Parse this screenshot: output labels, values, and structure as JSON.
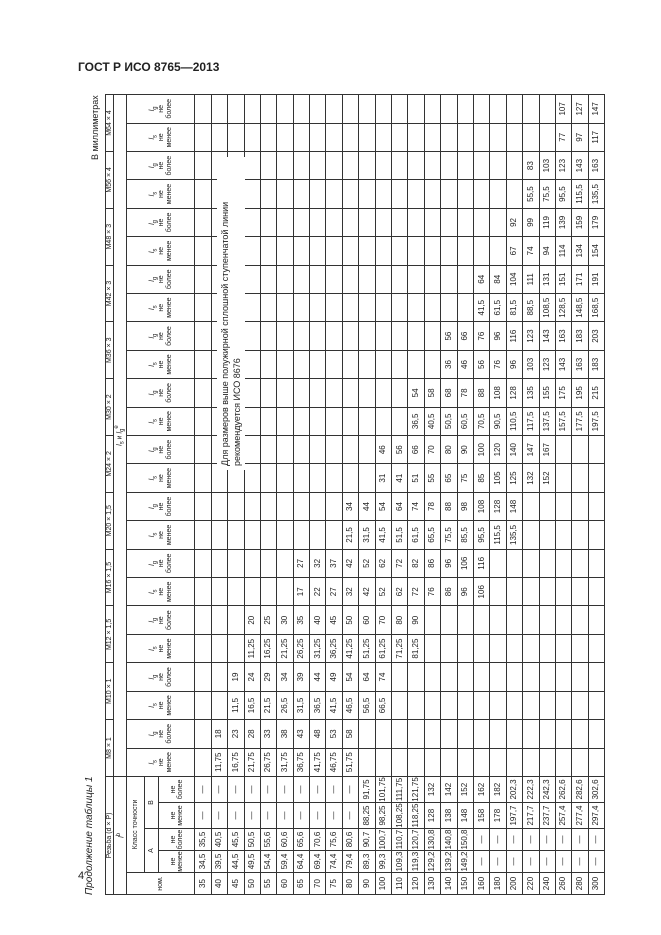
{
  "header": {
    "title": "ГОСТ Р ИСО 8765—2013",
    "page": "4",
    "caption": "Продолжение таблицы 1",
    "units": "В миллиметрах"
  },
  "table": {
    "thread_label": "Резьба (d × P)",
    "threads": [
      "M8 × 1",
      "M10 × 1",
      "M12 × 1,5",
      "M16 × 1,5",
      "M20 × 1,5",
      "M24 × 2",
      "M30 × 2",
      "M36 × 3",
      "M42 × 3",
      "M48 × 3",
      "M56 × 4",
      "M64 × 4"
    ],
    "l": "l",
    "b": "b",
    "s": "s",
    "g": "g",
    "and": "и",
    "e": "e",
    "accuracy_label": "Класс точности",
    "class_a": "A",
    "class_b": "B",
    "nom": "ном.",
    "min": "не менее",
    "max": "не более",
    "note": "Для размеров выше полужирной сплошной ступенчатой линии рекомендуется ИСО 8676",
    "rows": [
      [
        "35",
        "34,5",
        "35,5",
        "—",
        "—",
        null,
        null,
        null,
        null,
        null,
        null,
        null,
        null,
        null,
        null,
        null,
        null,
        null,
        null,
        null,
        null,
        null,
        null,
        null,
        null,
        null,
        null,
        null,
        null
      ],
      [
        "40",
        "39,5",
        "40,5",
        "—",
        "—",
        "11,75",
        "18",
        null,
        null,
        null,
        null,
        null,
        null,
        null,
        null,
        null,
        null,
        null,
        null,
        null,
        null,
        null,
        null,
        null,
        null,
        null,
        null,
        null,
        null
      ],
      [
        "45",
        "44,5",
        "45,5",
        "—",
        "—",
        "16,75",
        "23",
        "11,5",
        "19",
        null,
        null,
        null,
        null,
        null,
        null,
        null,
        null,
        null,
        null,
        null,
        null,
        null,
        null,
        null,
        null,
        null,
        null,
        null,
        null
      ],
      [
        "50",
        "49,5",
        "50,5",
        "—",
        "—",
        "21,75",
        "28",
        "16,5",
        "24",
        "11,25",
        "20",
        null,
        null,
        null,
        null,
        null,
        null,
        null,
        null,
        null,
        null,
        null,
        null,
        null,
        null,
        null,
        null,
        null,
        null
      ],
      [
        "55",
        "54,4",
        "55,6",
        "—",
        "—",
        "26,75",
        "33",
        "21,5",
        "29",
        "16,25",
        "25",
        null,
        null,
        null,
        null,
        null,
        null,
        null,
        null,
        null,
        null,
        null,
        null,
        null,
        null,
        null,
        null,
        null,
        null
      ],
      [
        "60",
        "59,4",
        "60,6",
        "—",
        "—",
        "31,75",
        "38",
        "26,5",
        "34",
        "21,25",
        "30",
        null,
        null,
        null,
        null,
        null,
        null,
        null,
        null,
        null,
        null,
        null,
        null,
        null,
        null,
        null,
        null,
        null,
        null
      ],
      [
        "65",
        "64,4",
        "65,6",
        "—",
        "—",
        "36,75",
        "43",
        "31,5",
        "39",
        "26,25",
        "35",
        "17",
        "27",
        null,
        null,
        null,
        null,
        null,
        null,
        null,
        null,
        null,
        null,
        null,
        null,
        null,
        null,
        null,
        null
      ],
      [
        "70",
        "69,4",
        "70,6",
        "—",
        "—",
        "41,75",
        "48",
        "36,5",
        "44",
        "31,25",
        "40",
        "22",
        "32",
        null,
        null,
        null,
        null,
        null,
        null,
        null,
        null,
        null,
        null,
        null,
        null,
        null,
        null,
        null,
        null
      ],
      [
        "75",
        "74,4",
        "75,6",
        "—",
        "—",
        "46,75",
        "53",
        "41,5",
        "49",
        "36,25",
        "45",
        "27",
        "37",
        null,
        null,
        null,
        null,
        null,
        null,
        null,
        null,
        null,
        null,
        null,
        null,
        null,
        null,
        null,
        null
      ],
      [
        "80",
        "79,4",
        "80,6",
        "—",
        "—",
        "51,75",
        "58",
        "46,5",
        "54",
        "41,25",
        "50",
        "32",
        "42",
        "21,5",
        "34",
        null,
        null,
        null,
        null,
        null,
        null,
        null,
        null,
        null,
        null,
        null,
        null,
        null,
        null
      ],
      [
        "90",
        "89,3",
        "90,7",
        "88,25",
        "91,75",
        null,
        null,
        "56,5",
        "64",
        "51,25",
        "60",
        "42",
        "52",
        "31,5",
        "44",
        null,
        null,
        null,
        null,
        null,
        null,
        null,
        null,
        null,
        null,
        null,
        null,
        null,
        null
      ],
      [
        "100",
        "99,3",
        "100,7",
        "98,25",
        "101,75",
        null,
        null,
        "66,5",
        "74",
        "61,25",
        "70",
        "52",
        "62",
        "41,5",
        "54",
        "31",
        "46",
        null,
        null,
        null,
        null,
        null,
        null,
        null,
        null,
        null,
        null,
        null,
        null
      ],
      [
        "110",
        "109,3",
        "110,7",
        "108,25",
        "111,75",
        null,
        null,
        null,
        null,
        "71,25",
        "80",
        "62",
        "72",
        "51,5",
        "64",
        "41",
        "56",
        null,
        null,
        null,
        null,
        null,
        null,
        null,
        null,
        null,
        null,
        null,
        null
      ],
      [
        "120",
        "119,3",
        "120,7",
        "118,25",
        "121,75",
        null,
        null,
        null,
        null,
        "81,25",
        "90",
        "72",
        "82",
        "61,5",
        "74",
        "51",
        "66",
        "36,5",
        "54",
        null,
        null,
        null,
        null,
        null,
        null,
        null,
        null,
        null,
        null
      ],
      [
        "130",
        "129,2",
        "130,8",
        "128",
        "132",
        null,
        null,
        null,
        null,
        null,
        null,
        "76",
        "86",
        "65,5",
        "78",
        "55",
        "70",
        "40,5",
        "58",
        null,
        null,
        null,
        null,
        null,
        null,
        null,
        null,
        null,
        null
      ],
      [
        "140",
        "139,2",
        "140,8",
        "138",
        "142",
        null,
        null,
        null,
        null,
        null,
        null,
        "86",
        "96",
        "75,5",
        "88",
        "65",
        "80",
        "50,5",
        "68",
        "36",
        "56",
        null,
        null,
        null,
        null,
        null,
        null,
        null,
        null
      ],
      [
        "150",
        "149,2",
        "150,8",
        "148",
        "152",
        null,
        null,
        null,
        null,
        null,
        null,
        "96",
        "106",
        "85,5",
        "98",
        "75",
        "90",
        "60,5",
        "78",
        "46",
        "66",
        null,
        null,
        null,
        null,
        null,
        null,
        null,
        null
      ],
      [
        "160",
        "—",
        "—",
        "158",
        "162",
        null,
        null,
        null,
        null,
        null,
        null,
        "106",
        "116",
        "95,5",
        "108",
        "85",
        "100",
        "70,5",
        "88",
        "56",
        "76",
        "41,5",
        "64",
        null,
        null,
        null,
        null,
        null,
        null
      ],
      [
        "180",
        "—",
        "—",
        "178",
        "182",
        null,
        null,
        null,
        null,
        null,
        null,
        null,
        null,
        "115,5",
        "128",
        "105",
        "120",
        "90,5",
        "108",
        "76",
        "96",
        "61,5",
        "84",
        null,
        null,
        null,
        null,
        null,
        null
      ],
      [
        "200",
        "—",
        "—",
        "197,7",
        "202,3",
        null,
        null,
        null,
        null,
        null,
        null,
        null,
        null,
        "135,5",
        "148",
        "125",
        "140",
        "110,5",
        "128",
        "96",
        "116",
        "81,5",
        "104",
        "67",
        "92",
        null,
        null,
        null,
        null
      ],
      [
        "220",
        "—",
        "—",
        "217,7",
        "222,3",
        null,
        null,
        null,
        null,
        null,
        null,
        null,
        null,
        null,
        null,
        "132",
        "147",
        "117,5",
        "135",
        "103",
        "123",
        "88,5",
        "111",
        "74",
        "99",
        "55,5",
        "83",
        null,
        null
      ],
      [
        "240",
        "—",
        "—",
        "237,7",
        "242,3",
        null,
        null,
        null,
        null,
        null,
        null,
        null,
        null,
        null,
        null,
        "152",
        "167",
        "137,5",
        "155",
        "123",
        "143",
        "108,5",
        "131",
        "94",
        "119",
        "75,5",
        "103",
        null,
        null
      ],
      [
        "260",
        "—",
        "—",
        "257,4",
        "262,6",
        null,
        null,
        null,
        null,
        null,
        null,
        null,
        null,
        null,
        null,
        null,
        null,
        "157,5",
        "175",
        "143",
        "163",
        "128,5",
        "151",
        "114",
        "139",
        "95,5",
        "123",
        "77",
        "107"
      ],
      [
        "280",
        "—",
        "—",
        "277,4",
        "282,6",
        null,
        null,
        null,
        null,
        null,
        null,
        null,
        null,
        null,
        null,
        null,
        null,
        "177,5",
        "195",
        "163",
        "183",
        "148,5",
        "171",
        "134",
        "159",
        "115,5",
        "143",
        "97",
        "127"
      ],
      [
        "300",
        "—",
        "—",
        "297,4",
        "302,6",
        null,
        null,
        null,
        null,
        null,
        null,
        null,
        null,
        null,
        null,
        null,
        null,
        "197,5",
        "215",
        "183",
        "203",
        "168,5",
        "191",
        "154",
        "179",
        "135,5",
        "163",
        "117",
        "147"
      ]
    ]
  }
}
